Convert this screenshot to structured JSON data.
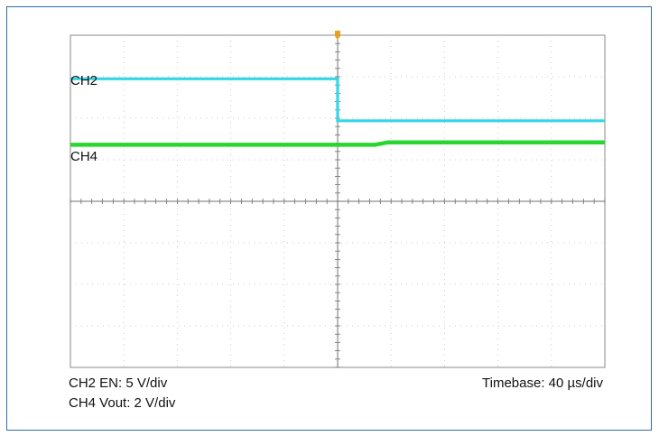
{
  "chart_data": {
    "type": "line",
    "divisions": {
      "x": 10,
      "y": 8
    },
    "trigger_x_div": 5,
    "series": [
      {
        "name": "CH2",
        "color": "#34d6e6",
        "points": [
          [
            0,
            6.95
          ],
          [
            5.0,
            6.95
          ],
          [
            5.0,
            5.94
          ],
          [
            10,
            5.94
          ]
        ],
        "stroke": 3.2
      },
      {
        "name": "CH4",
        "color": "#27d62f",
        "points": [
          [
            0,
            5.36
          ],
          [
            5.7,
            5.36
          ],
          [
            5.95,
            5.42
          ],
          [
            10,
            5.42
          ]
        ],
        "stroke": 4.5
      }
    ],
    "settings": {
      "ch2": "CH2 EN: 5 V/div",
      "ch4": "CH4 Vout: 2 V/div",
      "timebase": "Timebase: 40 µs/div"
    }
  },
  "colors": {
    "border": "#2f6ea6",
    "trigger": "#e8a020",
    "grid": "#c9c9c9",
    "plot_frame": "#8a8a8a"
  }
}
